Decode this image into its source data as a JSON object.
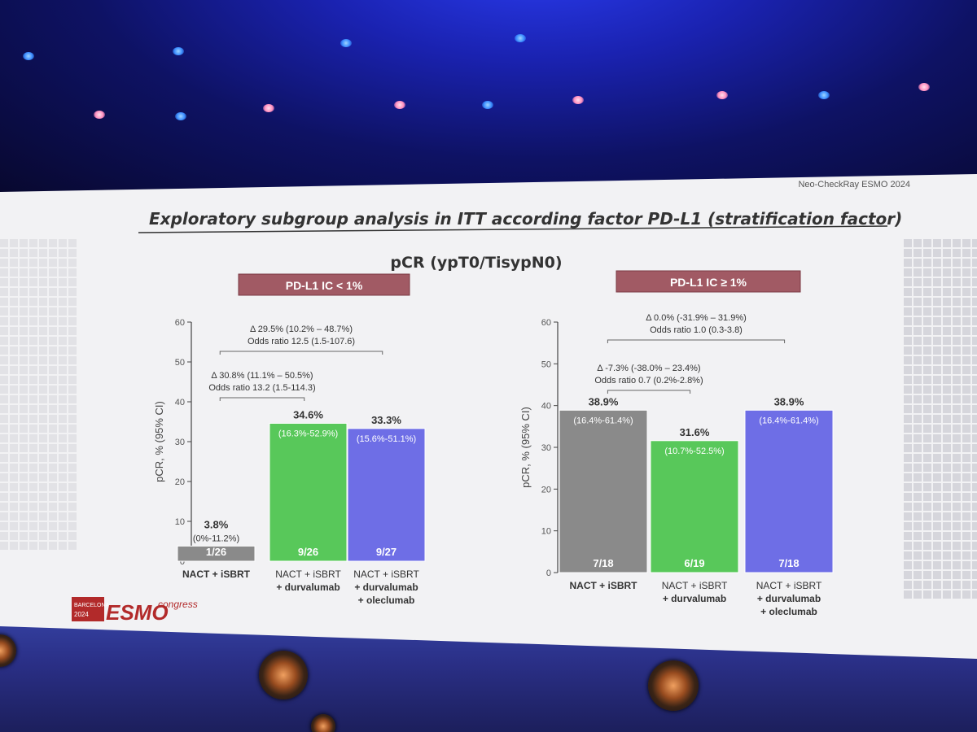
{
  "slide": {
    "header_right": "Neo-CheckRay ESMO 2024",
    "title": "Exploratory subgroup analysis in ITT according factor PD-L1 (stratification factor)",
    "subtitle": "pCR (ypT0/TisypN0)",
    "logo": {
      "city": "BARCELONA",
      "year": "2024",
      "brand": "ESMO",
      "suffix": "congress"
    }
  },
  "colors": {
    "nact": "#8a8a8a",
    "durva": "#58c85a",
    "olec": "#6e6ee6",
    "panel_label_bg": "#a15a64",
    "slide_bg": "#f2f2f4"
  },
  "chart_data": [
    {
      "type": "bar",
      "panel_label": "PD-L1 IC < 1%",
      "ylabel": "pCR, % (95% CI)",
      "ylim": [
        0,
        60
      ],
      "yticks": [
        0,
        10,
        20,
        30,
        40,
        50,
        60
      ],
      "categories": [
        [
          "NACT + iSBRT"
        ],
        [
          "NACT + iSBRT",
          "+ durvalumab"
        ],
        [
          "NACT + iSBRT",
          "+ durvalumab",
          "+ oleclumab"
        ]
      ],
      "values": [
        3.8,
        34.6,
        33.3
      ],
      "value_labels": [
        "3.8%",
        "34.6%",
        "33.3%"
      ],
      "ci_labels": [
        "(0%-11.2%)",
        "(16.3%-52.9%)",
        "(15.6%-51.1%)"
      ],
      "counts": [
        "1/26",
        "9/26",
        "9/27"
      ],
      "comparisons": [
        {
          "from": 0,
          "to": 1,
          "delta": "Δ 30.8% (11.1% – 50.5%)",
          "odds": "Odds ratio 13.2 (1.5-114.3)"
        },
        {
          "from": 0,
          "to": 2,
          "delta": "Δ 29.5% (10.2% – 48.7%)",
          "odds": "Odds ratio 12.5 (1.5-107.6)"
        }
      ]
    },
    {
      "type": "bar",
      "panel_label": "PD-L1 IC ≥ 1%",
      "ylabel": "pCR, % (95% CI)",
      "ylim": [
        0,
        60
      ],
      "yticks": [
        0,
        10,
        20,
        30,
        40,
        50,
        60
      ],
      "categories": [
        [
          "NACT + iSBRT"
        ],
        [
          "NACT + iSBRT",
          "+ durvalumab"
        ],
        [
          "NACT + iSBRT",
          "+ durvalumab",
          "+ oleclumab"
        ]
      ],
      "values": [
        38.9,
        31.6,
        38.9
      ],
      "value_labels": [
        "38.9%",
        "31.6%",
        "38.9%"
      ],
      "ci_labels": [
        "(16.4%-61.4%)",
        "(10.7%-52.5%)",
        "(16.4%-61.4%)"
      ],
      "counts": [
        "7/18",
        "6/19",
        "7/18"
      ],
      "comparisons": [
        {
          "from": 0,
          "to": 1,
          "delta": "Δ -7.3% (-38.0% – 23.4%)",
          "odds": "Odds ratio 0.7 (0.2%-2.8%)"
        },
        {
          "from": 0,
          "to": 2,
          "delta": "Δ 0.0% (-31.9% – 31.9%)",
          "odds": "Odds ratio 1.0 (0.3-3.8)"
        }
      ]
    }
  ]
}
